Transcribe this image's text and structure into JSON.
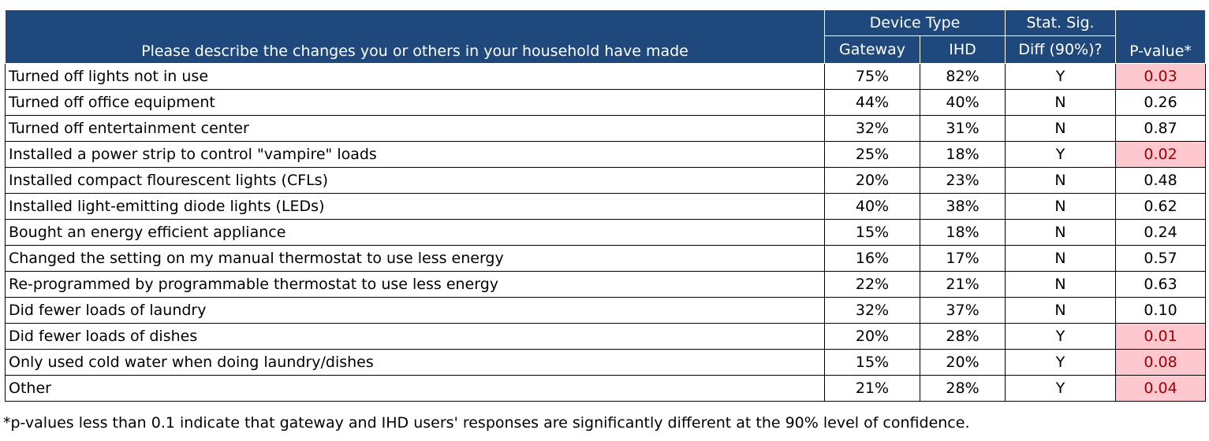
{
  "table": {
    "header": {
      "question": "Please describe the changes you or others in your household have made",
      "device_type_label": "Device Type",
      "gateway_label": "Gateway",
      "ihd_label": "IHD",
      "stat_sig_line1": "Stat. Sig.",
      "stat_sig_line2": "Diff (90%)?",
      "pvalue_label": "P-value*"
    },
    "rows": [
      {
        "change": "Turned off lights not in use",
        "gateway": "75%",
        "ihd": "82%",
        "sig": "Y",
        "pvalue": "0.03",
        "highlight": true
      },
      {
        "change": "Turned off office equipment",
        "gateway": "44%",
        "ihd": "40%",
        "sig": "N",
        "pvalue": "0.26",
        "highlight": false
      },
      {
        "change": "Turned off entertainment center",
        "gateway": "32%",
        "ihd": "31%",
        "sig": "N",
        "pvalue": "0.87",
        "highlight": false
      },
      {
        "change": "Installed a power strip to control \"vampire\" loads",
        "gateway": "25%",
        "ihd": "18%",
        "sig": "Y",
        "pvalue": "0.02",
        "highlight": true
      },
      {
        "change": "Installed compact flourescent lights (CFLs)",
        "gateway": "20%",
        "ihd": "23%",
        "sig": "N",
        "pvalue": "0.48",
        "highlight": false
      },
      {
        "change": "Installed light-emitting diode lights (LEDs)",
        "gateway": "40%",
        "ihd": "38%",
        "sig": "N",
        "pvalue": "0.62",
        "highlight": false
      },
      {
        "change": "Bought an energy efficient appliance",
        "gateway": "15%",
        "ihd": "18%",
        "sig": "N",
        "pvalue": "0.24",
        "highlight": false
      },
      {
        "change": "Changed the setting on my manual thermostat to use less energy",
        "gateway": "16%",
        "ihd": "17%",
        "sig": "N",
        "pvalue": "0.57",
        "highlight": false
      },
      {
        "change": "Re-programmed by programmable thermostat to use less energy",
        "gateway": "22%",
        "ihd": "21%",
        "sig": "N",
        "pvalue": "0.63",
        "highlight": false
      },
      {
        "change": "Did fewer loads of laundry",
        "gateway": "32%",
        "ihd": "37%",
        "sig": "N",
        "pvalue": "0.10",
        "highlight": false
      },
      {
        "change": "Did fewer loads of dishes",
        "gateway": "20%",
        "ihd": "28%",
        "sig": "Y",
        "pvalue": "0.01",
        "highlight": true
      },
      {
        "change": "Only used cold water when doing laundry/dishes",
        "gateway": "15%",
        "ihd": "20%",
        "sig": "Y",
        "pvalue": "0.08",
        "highlight": true
      },
      {
        "change": "Other",
        "gateway": "21%",
        "ihd": "28%",
        "sig": "Y",
        "pvalue": "0.04",
        "highlight": true
      }
    ]
  },
  "footnote": "*p-values less than 0.1 indicate that gateway and IHD users' responses are significantly different at the 90% level of confidence.",
  "colors": {
    "header_bg": "#1f497d",
    "header_text": "#ffffff",
    "highlight_bg": "#ffc7ce",
    "highlight_text": "#9c0006"
  }
}
